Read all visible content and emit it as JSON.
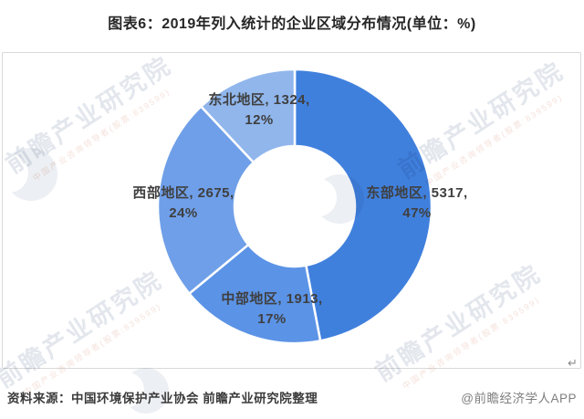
{
  "title": "图表6：2019年列入统计的企业区域分布情况(单位：%)",
  "chart_data": {
    "type": "pie",
    "subtype": "donut",
    "title": "2019年列入统计的企业区域分布情况",
    "unit": "%",
    "start_angle_deg": 0,
    "clockwise": true,
    "inner_radius_ratio": 0.44,
    "legend": "none",
    "slices": [
      {
        "name": "东部地区",
        "value": 5317,
        "pct": 47,
        "color": "#4080dd",
        "label_line1": "东部地区, 5317,",
        "label_line2": "47%"
      },
      {
        "name": "中部地区",
        "value": 1913,
        "pct": 17,
        "color": "#5b93e6",
        "label_line1": "中部地区, 1913,",
        "label_line2": "17%"
      },
      {
        "name": "西部地区",
        "value": 2675,
        "pct": 24,
        "color": "#6f9fe8",
        "label_line1": "西部地区, 2675,",
        "label_line2": "24%"
      },
      {
        "name": "东北地区",
        "value": 1324,
        "pct": 12,
        "color": "#90b6ec",
        "label_line1": "东北地区, 1324,",
        "label_line2": "12%"
      }
    ]
  },
  "footer": {
    "source": "资料来源：中国环境保护产业协会 前瞻产业研究院整理",
    "credit": "@前瞻经济学人APP"
  },
  "watermark": {
    "text": "前瞻产业研究院",
    "subtext": "中国产业咨询领导者(股票:839599)"
  },
  "misc": {
    "return_mark": "↵"
  }
}
